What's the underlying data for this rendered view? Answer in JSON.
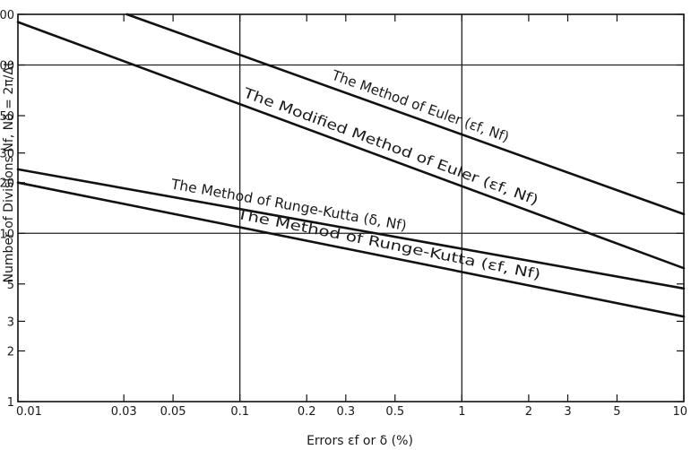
{
  "chart_data": {
    "type": "line",
    "xlabel": "Errors  εf or δ (%)",
    "ylabel": "Number of Divisions  Nf, Nδ = 2π/Δt",
    "x_scale": "log",
    "y_scale": "log",
    "xlim": [
      0.01,
      10
    ],
    "ylim": [
      1,
      200
    ],
    "x_ticks": [
      0.01,
      0.03,
      0.05,
      0.1,
      0.2,
      0.3,
      0.5,
      1,
      2,
      3,
      5,
      10
    ],
    "x_tick_labels": [
      "0.01",
      "0.03",
      "0.05",
      "0.1",
      "0.2",
      "0.3",
      "0.5",
      "1",
      "2",
      "3",
      "5",
      "10"
    ],
    "y_ticks": [
      1,
      2,
      3,
      5,
      10,
      20,
      30,
      50,
      100,
      200
    ],
    "y_tick_labels": [
      "1",
      "2",
      "3",
      "5",
      "10",
      "20",
      "30",
      "50",
      "100",
      "200"
    ],
    "grid_x": [
      0.1,
      1
    ],
    "grid_y": [
      10,
      100
    ],
    "series": [
      {
        "name": "The Method of Euler (εf, Nf)",
        "x": [
          0.031,
          10
        ],
        "y": [
          200,
          13
        ]
      },
      {
        "name": "The Modified Method of Euler (εf, Nf)",
        "x": [
          0.01,
          10
        ],
        "y": [
          180,
          6.2
        ]
      },
      {
        "name": "The Method of Runge-Kutta (δ, Nf)",
        "x": [
          0.01,
          10
        ],
        "y": [
          24,
          4.7
        ]
      },
      {
        "name": "The Method of Runge-Kutta (εf, Nf)",
        "x": [
          0.01,
          10
        ],
        "y": [
          20,
          3.2
        ]
      }
    ]
  }
}
